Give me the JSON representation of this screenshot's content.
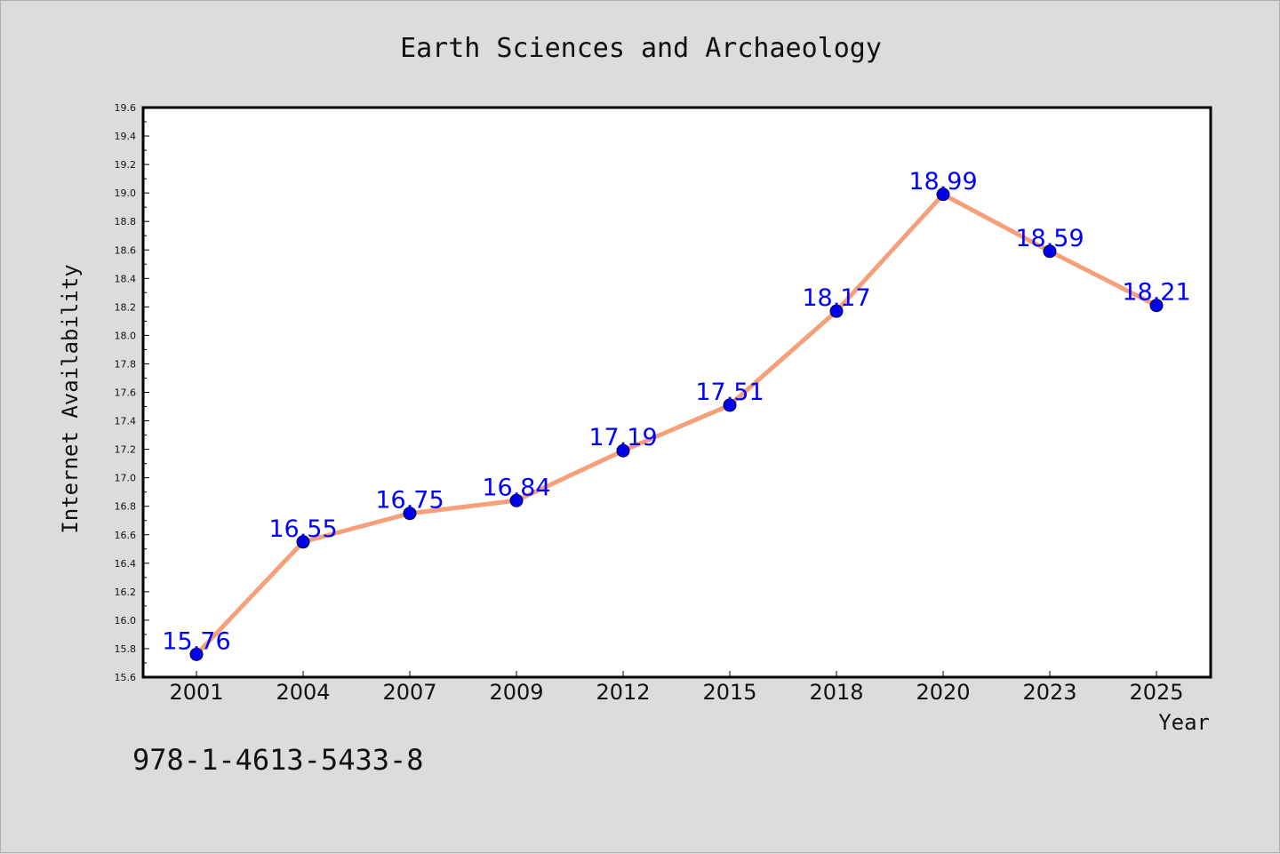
{
  "chart_data": {
    "type": "line",
    "title": "Earth Sciences and Archaeology",
    "xlabel": "Year",
    "ylabel": "Internet Availability",
    "categories": [
      "2001",
      "2004",
      "2007",
      "2009",
      "2012",
      "2015",
      "2018",
      "2020",
      "2023",
      "2025"
    ],
    "series": [
      {
        "values": [
          15.76,
          16.55,
          16.75,
          16.84,
          17.19,
          17.51,
          18.17,
          18.99,
          18.59,
          18.21
        ]
      }
    ],
    "data_labels": [
      "15.76",
      "16.55",
      "16.75",
      "16.84",
      "17.19",
      "17.51",
      "18.17",
      "18.99",
      "18.59",
      "18.21"
    ],
    "ylim": [
      15.6,
      19.6
    ],
    "yticks": [
      "15.6",
      "15.8",
      "16.0",
      "16.2",
      "16.4",
      "16.6",
      "16.8",
      "17.0",
      "17.2",
      "17.4",
      "17.6",
      "17.8",
      "18.0",
      "18.2",
      "18.4",
      "18.6",
      "18.8",
      "19.0",
      "19.2",
      "19.4",
      "19.6"
    ],
    "grid": false,
    "legend": "none"
  },
  "footer": {
    "isbn": "978-1-4613-5433-8"
  },
  "colors": {
    "background": "#dcdcdc",
    "plot_background": "#ffffff",
    "line": "#f5a07a",
    "marker": "#0000ee",
    "data_label": "#0000ff",
    "axis": "#000000"
  }
}
